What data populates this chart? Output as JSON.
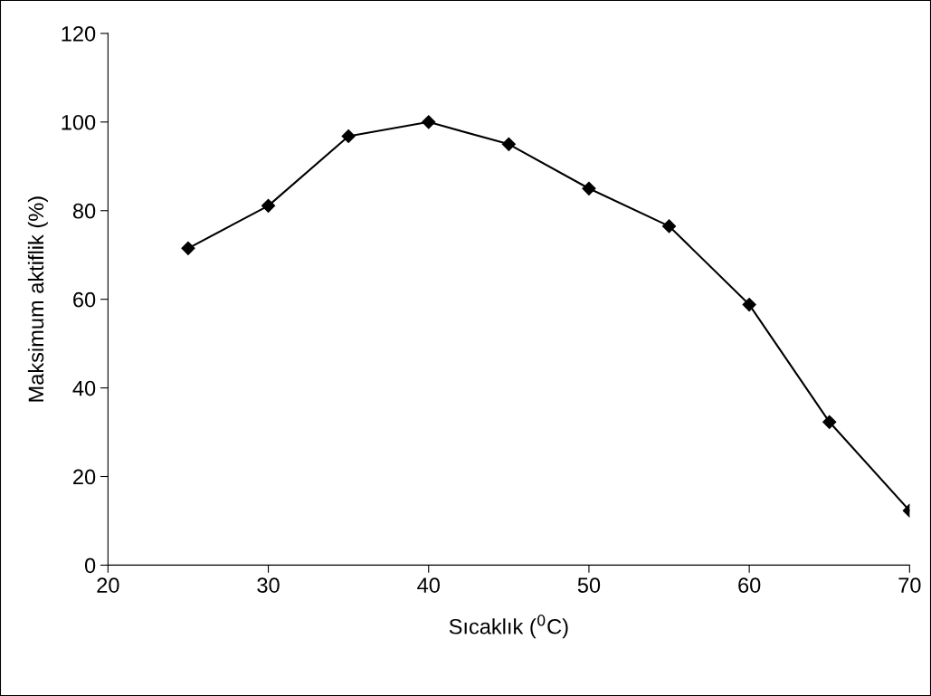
{
  "chart_data": {
    "type": "line",
    "xlabel": "Sıcaklık ($^{0}$C)",
    "ylabel": "Maksimum aktiflik (%)",
    "x": [
      25,
      30,
      35,
      40,
      45,
      50,
      55,
      60,
      65,
      70
    ],
    "series": [
      {
        "color": "#000000",
        "values": [
          71.5,
          81.1,
          96.8,
          100,
          95.0,
          85.0,
          76.5,
          58.8,
          32.3,
          12.3
        ]
      }
    ],
    "xlim": [
      20,
      70
    ],
    "xticks": [
      20,
      30,
      40,
      50,
      60,
      70
    ],
    "ylim": [
      0,
      120
    ],
    "yticks": [
      0,
      20,
      40,
      60,
      80,
      100,
      120
    ],
    "marker": "diamond",
    "line_style": "solid",
    "grid": false,
    "legend": false
  }
}
